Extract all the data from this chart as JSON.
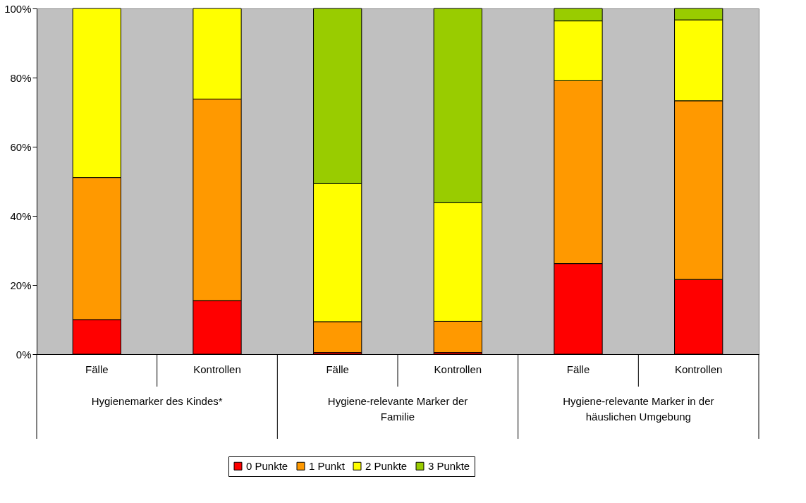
{
  "chart_data": {
    "type": "bar",
    "stacked": true,
    "categories": [
      "Fälle",
      "Kontrollen",
      "Fälle",
      "Kontrollen",
      "Fälle",
      "Kontrollen"
    ],
    "series": [
      {
        "name": "0 Punkte",
        "color": "#ff0000",
        "values": [
          10.0,
          15.5,
          0.5,
          0.5,
          26.2,
          21.6
        ]
      },
      {
        "name": "1 Punkt",
        "color": "#ff9900",
        "values": [
          41.1,
          58.3,
          8.9,
          9.0,
          52.9,
          51.7
        ]
      },
      {
        "name": "2 Punkte",
        "color": "#ffff00",
        "values": [
          48.9,
          26.2,
          39.9,
          34.3,
          17.3,
          23.4
        ]
      },
      {
        "name": "3 Punkte",
        "color": "#99cc00",
        "values": [
          null,
          null,
          50.7,
          56.2,
          3.6,
          3.3
        ]
      }
    ],
    "annotations": [
      "Hygienemarker des Kindes*",
      "Hygiene-relevante Marker der Familie",
      "Hygiene-relevante Marker in der häuslichen Umgebung"
    ],
    "ylim": [
      0,
      100
    ],
    "yticks": [
      {
        "value": 0,
        "label": "0%"
      },
      {
        "value": 20,
        "label": "20%"
      },
      {
        "value": 40,
        "label": "40%"
      },
      {
        "value": 60,
        "label": "60%"
      },
      {
        "value": 80,
        "label": "80%"
      },
      {
        "value": 100,
        "label": "100%"
      }
    ],
    "grid": false,
    "legend": "bottom"
  }
}
